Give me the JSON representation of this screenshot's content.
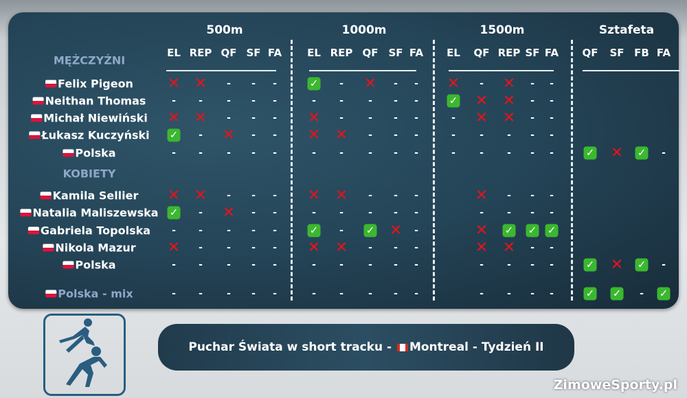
{
  "groups": [
    {
      "label": "500m",
      "cols": [
        "EL",
        "REP",
        "QF",
        "SF",
        "FA"
      ]
    },
    {
      "label": "1000m",
      "cols": [
        "EL",
        "REP",
        "QF",
        "SF",
        "FA"
      ]
    },
    {
      "label": "1500m",
      "cols": [
        "EL",
        "QF",
        "REP",
        "SF",
        "FA"
      ]
    },
    {
      "label": "Sztafeta",
      "cols": [
        "QF",
        "SF",
        "FB",
        "FA"
      ]
    }
  ],
  "sections": {
    "men": "MĘŻCZYŹNI",
    "women": "KOBIETY"
  },
  "rows": [
    {
      "name": "Felix Pigeon",
      "flag": "pl",
      "cells": [
        [
          "x",
          "x",
          "-",
          "-",
          "-"
        ],
        [
          "v",
          "-",
          "x",
          "-",
          "-"
        ],
        [
          "x",
          "-",
          "x",
          "-",
          "-"
        ],
        [
          "",
          "",
          "",
          ""
        ]
      ]
    },
    {
      "name": "Neithan Thomas",
      "flag": "pl",
      "cells": [
        [
          "-",
          "-",
          "-",
          "-",
          "-"
        ],
        [
          "-",
          "-",
          "-",
          "-",
          "-"
        ],
        [
          "v",
          "x",
          "x",
          "-",
          "-"
        ],
        [
          "",
          "",
          "",
          ""
        ]
      ]
    },
    {
      "name": "Michał Niewiński",
      "flag": "pl",
      "cells": [
        [
          "x",
          "x",
          "-",
          "-",
          "-"
        ],
        [
          "x",
          "-",
          "-",
          "-",
          "-"
        ],
        [
          "-",
          "x",
          "x",
          "-",
          "-"
        ],
        [
          "",
          "",
          "",
          ""
        ]
      ]
    },
    {
      "name": "Łukasz Kuczyński",
      "flag": "pl",
      "cells": [
        [
          "v",
          "-",
          "x",
          "-",
          "-"
        ],
        [
          "x",
          "x",
          "-",
          "-",
          "-"
        ],
        [
          "-",
          "-",
          "-",
          "-",
          "-"
        ],
        [
          "",
          "",
          "",
          ""
        ]
      ]
    },
    {
      "name": "Polska",
      "flag": "pl",
      "cells": [
        [
          "-",
          "-",
          "-",
          "-",
          "-"
        ],
        [
          "-",
          "-",
          "-",
          "-",
          "-"
        ],
        [
          "-",
          "-",
          "-",
          "-",
          "-"
        ],
        [
          "v",
          "x",
          "v",
          "-"
        ]
      ]
    },
    {
      "name": "Kamila Sellier",
      "flag": "pl",
      "cells": [
        [
          "x",
          "x",
          "-",
          "-",
          "-"
        ],
        [
          "x",
          "x",
          "-",
          "-",
          "-"
        ],
        [
          "",
          "x",
          "-",
          "-",
          "-"
        ],
        [
          "",
          "",
          "",
          ""
        ]
      ]
    },
    {
      "name": "Natalia Maliszewska",
      "flag": "pl",
      "cells": [
        [
          "v",
          "-",
          "x",
          "-",
          "-"
        ],
        [
          "-",
          "-",
          "-",
          "-",
          "-"
        ],
        [
          "",
          "-",
          "-",
          "-",
          "-"
        ],
        [
          "",
          "",
          "",
          ""
        ]
      ]
    },
    {
      "name": "Gabriela Topolska",
      "flag": "pl",
      "cells": [
        [
          "-",
          "-",
          "-",
          "-",
          "-"
        ],
        [
          "v",
          "-",
          "v",
          "x",
          "-"
        ],
        [
          "",
          "x",
          "v",
          "v",
          "v"
        ],
        [
          "",
          "",
          "",
          ""
        ]
      ]
    },
    {
      "name": "Nikola Mazur",
      "flag": "pl",
      "cells": [
        [
          "x",
          "-",
          "-",
          "-",
          "-"
        ],
        [
          "x",
          "x",
          "-",
          "-",
          "-"
        ],
        [
          "",
          "x",
          "x",
          "-",
          "-"
        ],
        [
          "",
          "",
          "",
          ""
        ]
      ]
    },
    {
      "name": "Polska",
      "flag": "pl",
      "cells": [
        [
          "-",
          "-",
          "-",
          "-",
          "-"
        ],
        [
          "-",
          "-",
          "-",
          "-",
          "-"
        ],
        [
          "",
          "-",
          "-",
          "-",
          "-"
        ],
        [
          "v",
          "x",
          "v",
          "-"
        ]
      ]
    },
    {
      "name": "Polska - mix",
      "flag": "pl",
      "highlight": true,
      "cells": [
        [
          "-",
          "-",
          "-",
          "-",
          "-"
        ],
        [
          "-",
          "-",
          "-",
          "-",
          "-"
        ],
        [
          "",
          "-",
          "-",
          "-",
          "-"
        ],
        [
          "v",
          "v",
          "-",
          "v"
        ]
      ]
    }
  ],
  "symbols": {
    "x": "✕",
    "v": "✓",
    "-": "-"
  },
  "banner": {
    "part1": "Puchar Świata w short tracku - ",
    "part2": "Montreal - Tydzień II"
  },
  "brand": "ZimoweSporty.pl",
  "icons": {
    "logo": "short-track-skaters-icon"
  }
}
